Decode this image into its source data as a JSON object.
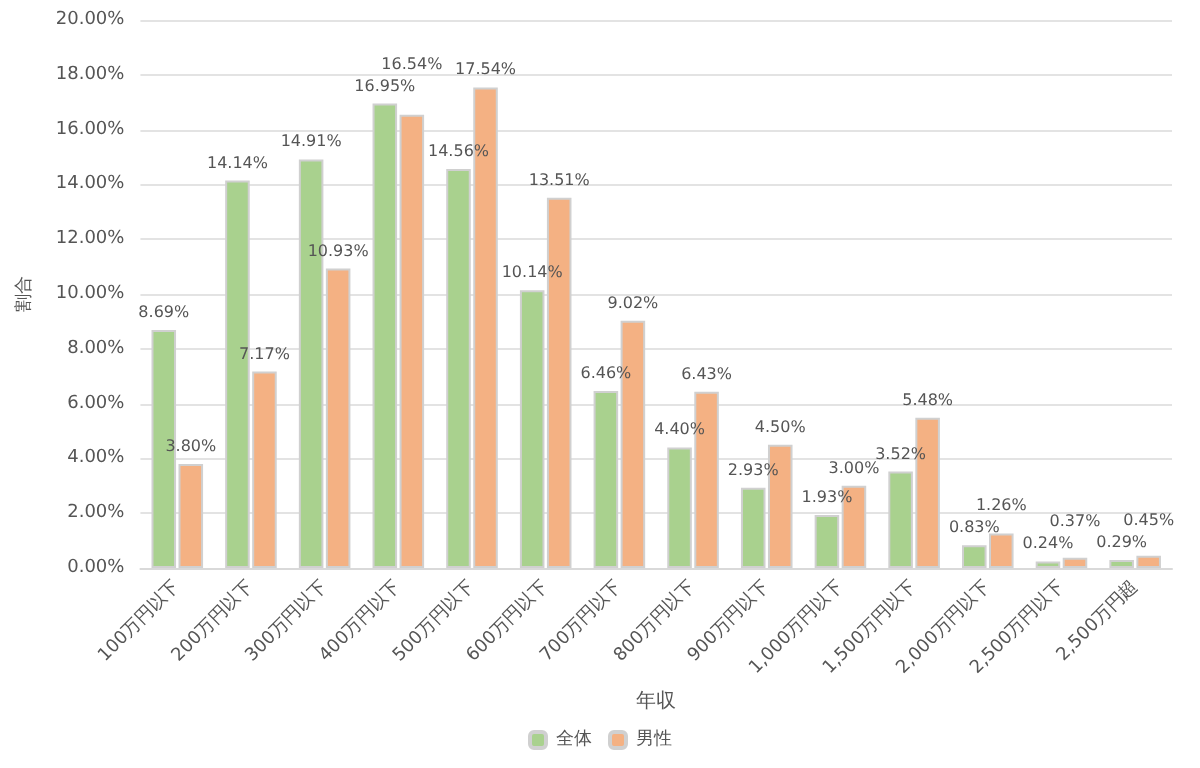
{
  "chart_data": {
    "type": "bar",
    "xlabel": "年収",
    "ylabel": "割合",
    "categories": [
      "100万円以下",
      "200万円以下",
      "300万円以下",
      "400万円以下",
      "500万円以下",
      "600万円以下",
      "700万円以下",
      "800万円以下",
      "900万円以下",
      "1,000万円以下",
      "1,500万円以下",
      "2,000万円以下",
      "2,500万円以下",
      "2,500万円超"
    ],
    "series": [
      {
        "name": "全体",
        "color": "#a9d18e",
        "values": [
          8.69,
          14.14,
          14.91,
          16.95,
          14.56,
          10.14,
          6.46,
          4.4,
          2.93,
          1.93,
          3.52,
          0.83,
          0.24,
          0.29
        ],
        "value_labels": [
          "8.69%",
          "14.14%",
          "14.91%",
          "16.95%",
          "14.56%",
          "10.14%",
          "6.46%",
          "4.40%",
          "2.93%",
          "1.93%",
          "3.52%",
          "0.83%",
          "0.24%",
          "0.29%"
        ]
      },
      {
        "name": "男性",
        "color": "#f4b183",
        "values": [
          3.8,
          7.17,
          10.93,
          16.54,
          17.54,
          13.51,
          9.02,
          6.43,
          4.5,
          3.0,
          5.48,
          1.26,
          0.37,
          0.45
        ],
        "value_labels": [
          "3.80%",
          "7.17%",
          "10.93%",
          "16.54%",
          "17.54%",
          "13.51%",
          "9.02%",
          "6.43%",
          "4.50%",
          "3.00%",
          "5.48%",
          "1.26%",
          "0.37%",
          "0.45%"
        ]
      }
    ],
    "ylim": [
      0,
      20
    ],
    "yticks": [
      {
        "value": 0,
        "label": "0.00%"
      },
      {
        "value": 2,
        "label": "2.00%"
      },
      {
        "value": 4,
        "label": "4.00%"
      },
      {
        "value": 6,
        "label": "6.00%"
      },
      {
        "value": 8,
        "label": "8.00%"
      },
      {
        "value": 10,
        "label": "10.00%"
      },
      {
        "value": 12,
        "label": "12.00%"
      },
      {
        "value": 14,
        "label": "14.00%"
      },
      {
        "value": 16,
        "label": "16.00%"
      },
      {
        "value": 18,
        "label": "18.00%"
      },
      {
        "value": 20,
        "label": "20.00%"
      }
    ],
    "grid": "y",
    "legend": "bottom"
  }
}
